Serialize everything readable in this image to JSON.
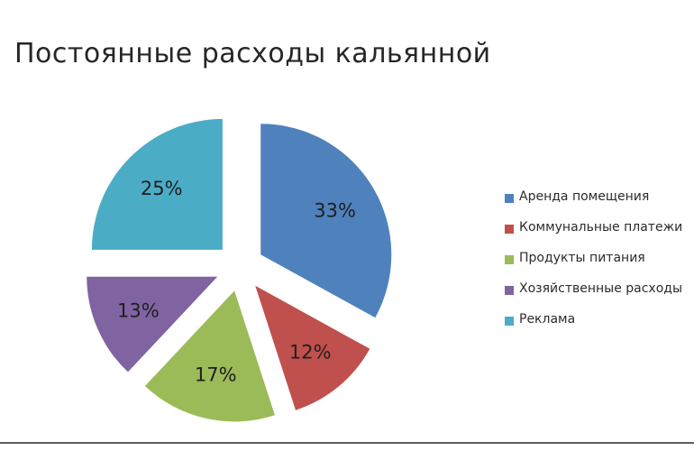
{
  "chart_data": {
    "type": "pie",
    "title": "Постоянные расходы кальянной",
    "categories": [
      "Аренда помещения",
      "Коммунальные платежи",
      "Продукты питания",
      "Хозяйственные расходы",
      "Реклама"
    ],
    "values": [
      33,
      12,
      17,
      13,
      25
    ],
    "data_labels": [
      "33%",
      "12%",
      "17%",
      "13%",
      "25%"
    ],
    "colors": [
      "#4F81BD",
      "#C0504D",
      "#9BBB59",
      "#8064A2",
      "#4BACC6"
    ],
    "exploded": true,
    "legend_position": "right"
  }
}
